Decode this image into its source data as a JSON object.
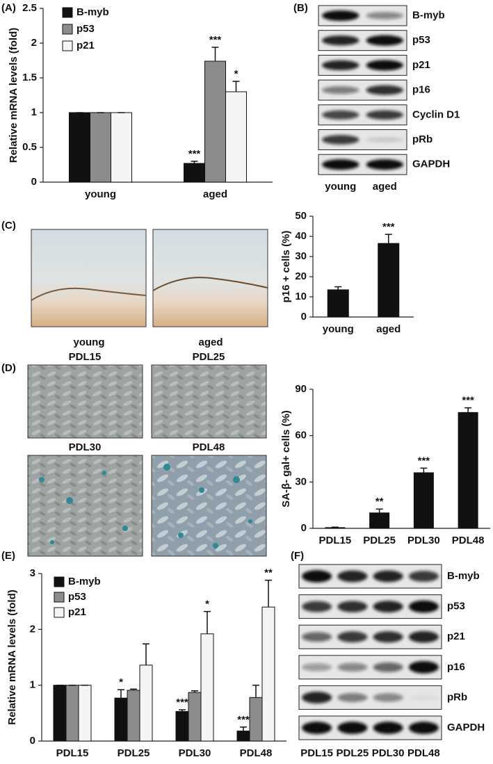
{
  "panel_labels": [
    "(A)",
    "(B)",
    "(C)",
    "(D)",
    "(E)",
    "(F)"
  ],
  "blot_b": {
    "proteins": [
      "B-myb",
      "p53",
      "p21",
      "p16",
      "Cyclin D1",
      "pRb",
      "GAPDH"
    ],
    "lanes": [
      "young",
      "aged"
    ]
  },
  "micrographs_c": {
    "labels": [
      "young",
      "aged"
    ]
  },
  "micrographs_d": {
    "labels": [
      "PDL15",
      "PDL25",
      "PDL30",
      "PDL48"
    ]
  },
  "blot_f": {
    "proteins": [
      "B-myb",
      "p53",
      "p21",
      "p16",
      "pRb",
      "GAPDH"
    ],
    "lanes": [
      "PDL15",
      "PDL25",
      "PDL30",
      "PDL48"
    ]
  },
  "chart_data": [
    {
      "type": "bar",
      "y_label": "Relative mRNA levels  (fold)",
      "categories": [
        "young",
        "aged"
      ],
      "series": [
        {
          "name": "B-myb",
          "color": "#111111",
          "values": [
            1,
            0.27
          ],
          "errors": [
            0,
            0.03
          ],
          "annotations": [
            null,
            "***"
          ]
        },
        {
          "name": "p53",
          "color": "#8c8c8c",
          "values": [
            1,
            1.74
          ],
          "errors": [
            0,
            0.2
          ],
          "annotations": [
            null,
            "***"
          ]
        },
        {
          "name": "p21",
          "color": "#f4f4f4",
          "values": [
            1,
            1.3
          ],
          "errors": [
            0,
            0.15
          ],
          "annotations": [
            null,
            "*"
          ]
        }
      ],
      "ylim": [
        0,
        2.5
      ],
      "yticks": [
        0,
        0.5,
        1,
        1.5,
        2,
        2.5
      ]
    },
    {
      "type": "bar",
      "y_label": "p16 + cells (%)",
      "categories": [
        "young",
        "aged"
      ],
      "color": "#111111",
      "values": [
        13.5,
        36.5
      ],
      "errors": [
        1.5,
        4.5
      ],
      "annotations": [
        null,
        "***"
      ],
      "ylim": [
        0,
        50
      ],
      "yticks": [
        0,
        10,
        20,
        30,
        40,
        50
      ]
    },
    {
      "type": "bar",
      "y_label": "SA-β- gal+ cells (%)",
      "categories": [
        "PDL15",
        "PDL25",
        "PDL30",
        "PDL48"
      ],
      "color": "#111111",
      "values": [
        0.5,
        10,
        36,
        75
      ],
      "errors": [
        0.3,
        2.5,
        3,
        3
      ],
      "annotations": [
        null,
        "**",
        "***",
        "***"
      ],
      "ylim": [
        0,
        90
      ],
      "yticks": [
        0,
        30,
        60,
        90
      ]
    },
    {
      "type": "bar",
      "y_label": "Relative mRNA levels  (fold)",
      "categories": [
        "PDL15",
        "PDL25",
        "PDL30",
        "PDL48"
      ],
      "series": [
        {
          "name": "B-myb",
          "color": "#111111",
          "values": [
            1,
            0.77,
            0.53,
            0.18
          ],
          "errors": [
            0,
            0.15,
            0.03,
            0.07
          ],
          "annotations": [
            null,
            "*",
            "***",
            "***"
          ]
        },
        {
          "name": "p53",
          "color": "#8c8c8c",
          "values": [
            1,
            0.91,
            0.87,
            0.78
          ],
          "errors": [
            0,
            0.02,
            0.03,
            0.22
          ],
          "annotations": [
            null,
            null,
            null,
            null
          ]
        },
        {
          "name": "p21",
          "color": "#f4f4f4",
          "values": [
            1,
            1.36,
            1.92,
            2.4
          ],
          "errors": [
            0,
            0.38,
            0.4,
            0.48
          ],
          "annotations": [
            null,
            null,
            "*",
            "**"
          ]
        }
      ],
      "ylim": [
        0,
        3
      ],
      "yticks": [
        0,
        1,
        2,
        3
      ]
    }
  ]
}
